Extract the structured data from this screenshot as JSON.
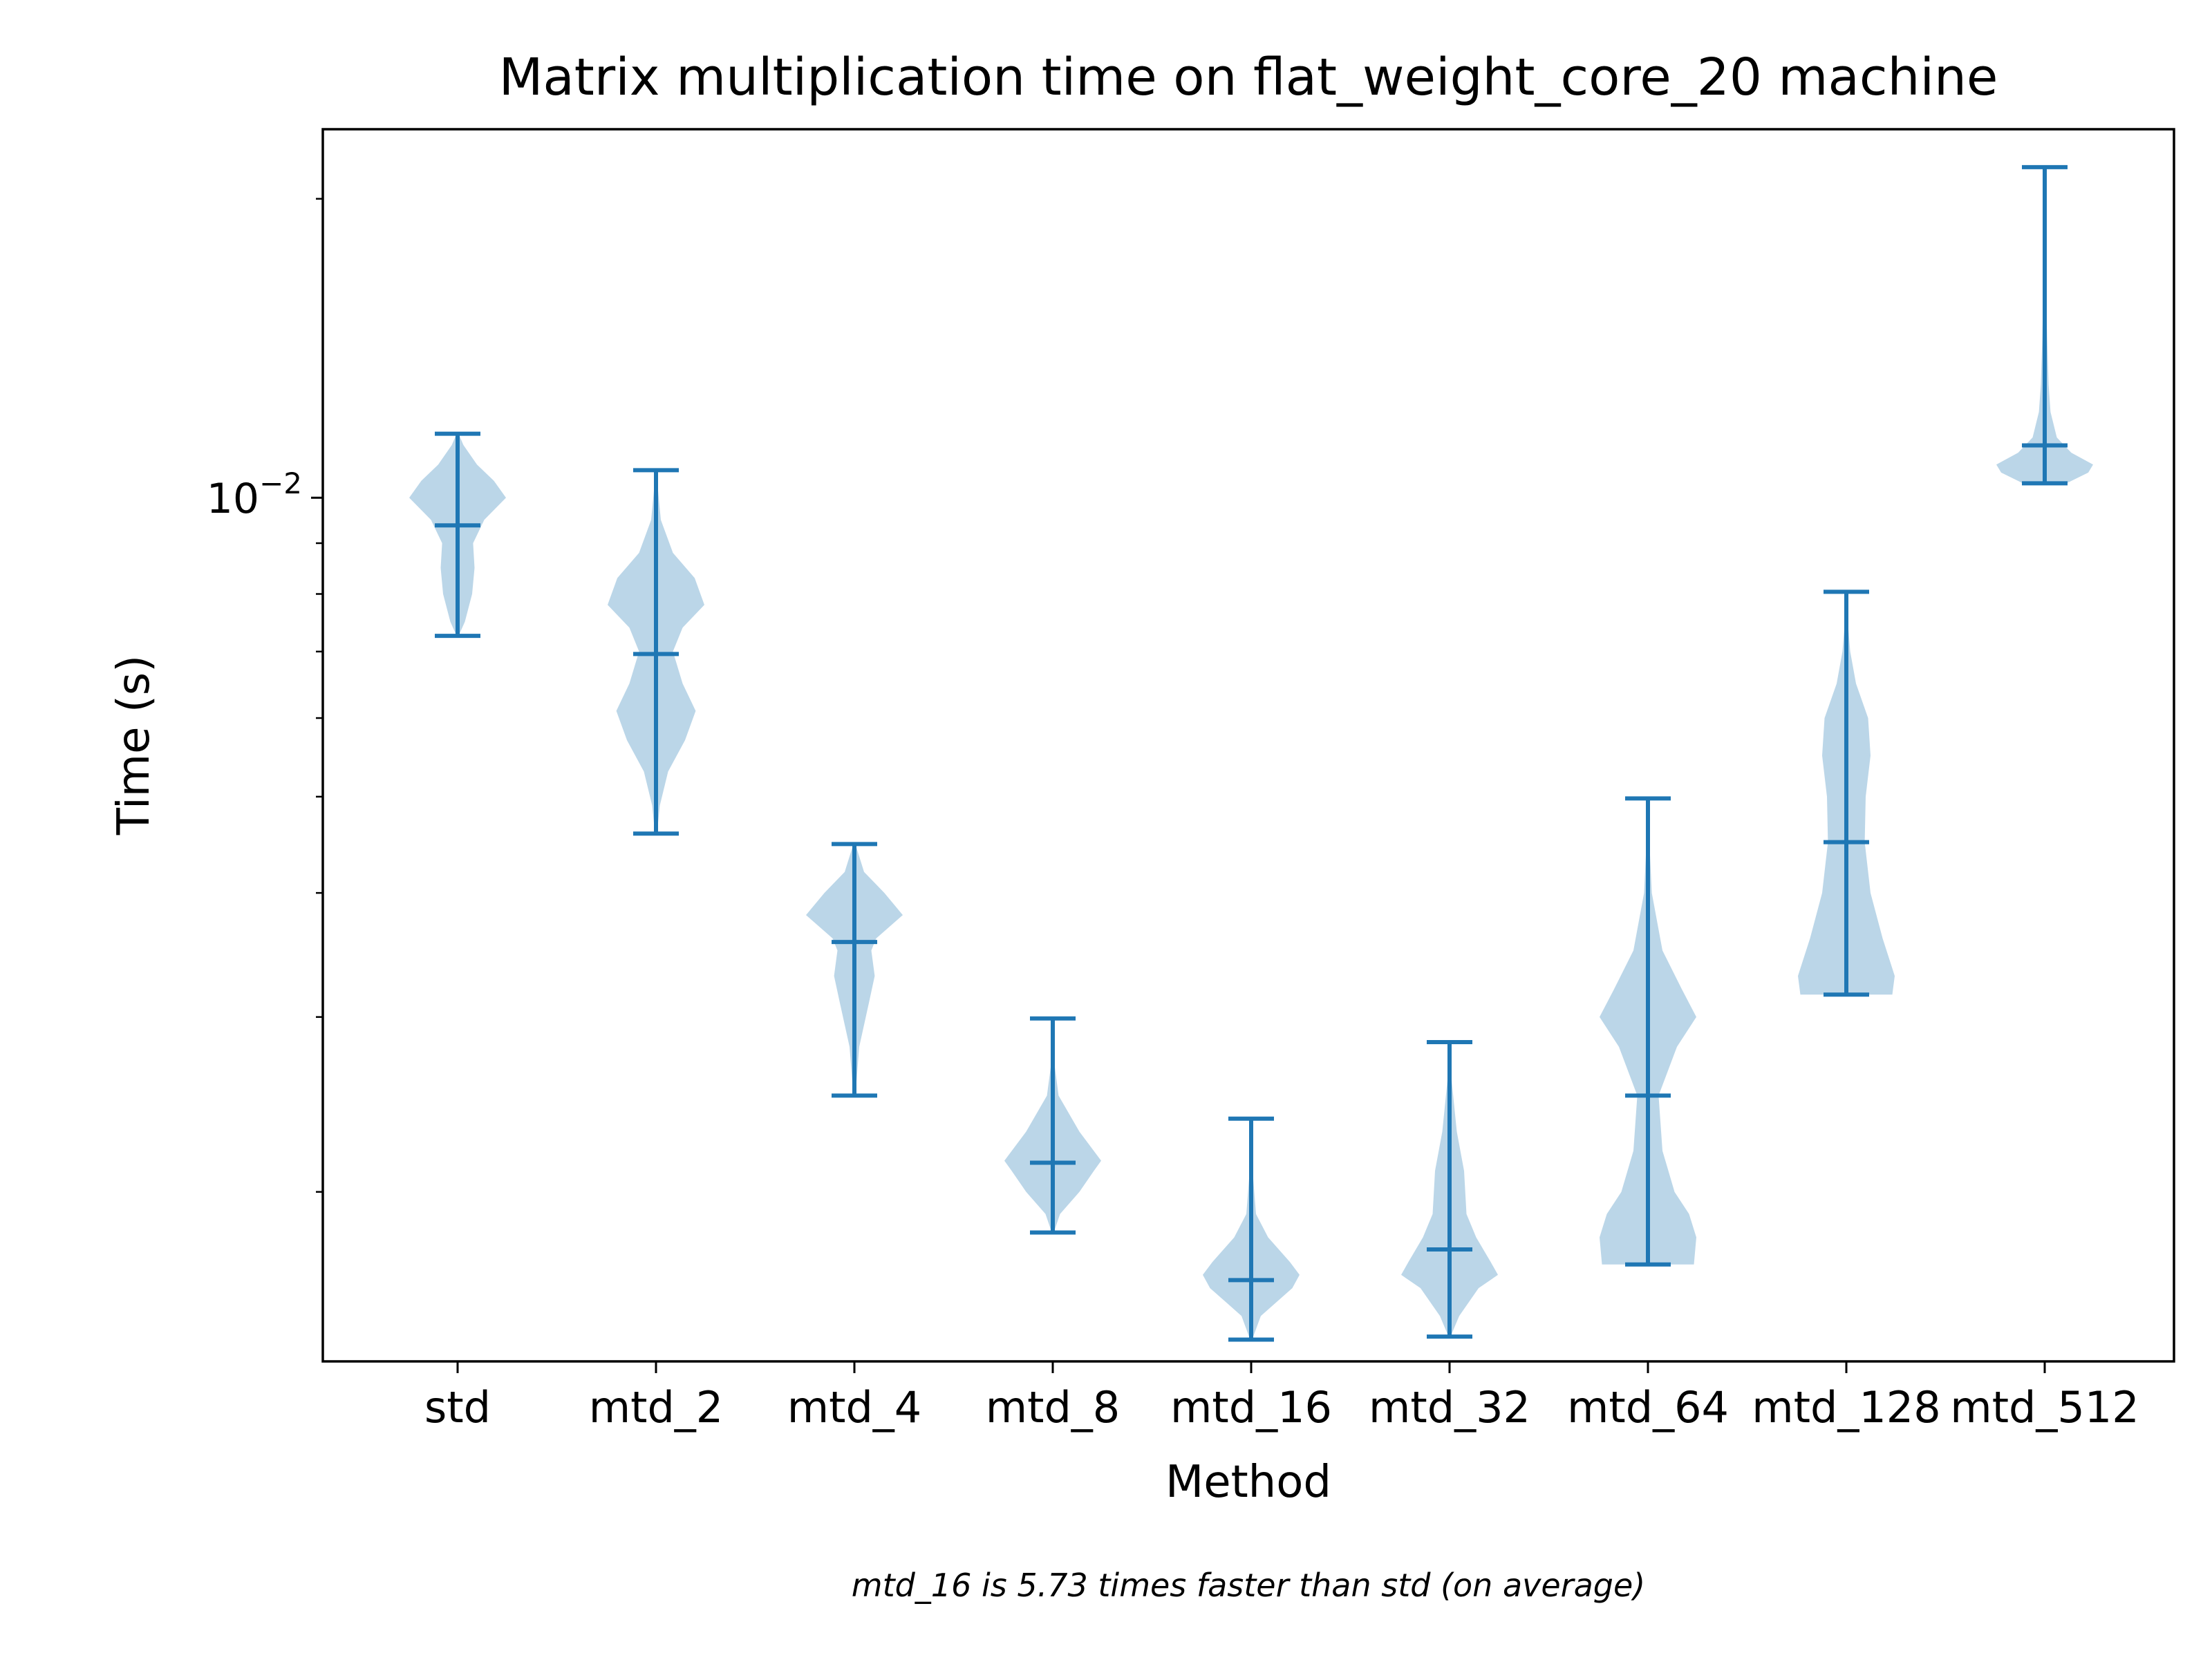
{
  "chart_data": {
    "type": "violin",
    "title": "Matrix multiplication time on flat_weight_core_20 machine",
    "xlabel": "Method",
    "ylabel": "Time (s)",
    "yscale": "log",
    "ylim": [
      0.00135,
      0.0235
    ],
    "yticks_major": [
      {
        "value": 0.01,
        "label": "10",
        "exp": "−2"
      }
    ],
    "yticks_minor": [
      0.002,
      0.003,
      0.004,
      0.005,
      0.006,
      0.007,
      0.008,
      0.009,
      0.02
    ],
    "categories": [
      "std",
      "mtd_2",
      "mtd_4",
      "mtd_8",
      "mtd_16",
      "mtd_32",
      "mtd_64",
      "mtd_128",
      "mtd_512"
    ],
    "series": [
      {
        "min": 0.00726,
        "mean": 0.00938,
        "max": 0.0116,
        "density": [
          [
            0.00726,
            0.02
          ],
          [
            0.0075,
            0.15
          ],
          [
            0.008,
            0.3
          ],
          [
            0.0085,
            0.35
          ],
          [
            0.009,
            0.32
          ],
          [
            0.0095,
            0.55
          ],
          [
            0.01,
            1.0
          ],
          [
            0.0104,
            0.75
          ],
          [
            0.0108,
            0.4
          ],
          [
            0.0113,
            0.12
          ],
          [
            0.0116,
            0.02
          ]
        ]
      },
      {
        "min": 0.00459,
        "mean": 0.00696,
        "max": 0.01066,
        "density": [
          [
            0.00459,
            0.02
          ],
          [
            0.0049,
            0.08
          ],
          [
            0.0053,
            0.25
          ],
          [
            0.0057,
            0.6
          ],
          [
            0.0061,
            0.82
          ],
          [
            0.0065,
            0.55
          ],
          [
            0.007,
            0.35
          ],
          [
            0.0074,
            0.55
          ],
          [
            0.0078,
            1.0
          ],
          [
            0.0083,
            0.8
          ],
          [
            0.0088,
            0.35
          ],
          [
            0.0095,
            0.1
          ],
          [
            0.0102,
            0.04
          ],
          [
            0.01066,
            0.02
          ]
        ]
      },
      {
        "min": 0.0025,
        "mean": 0.00357,
        "max": 0.00448,
        "density": [
          [
            0.0025,
            0.02
          ],
          [
            0.0028,
            0.1
          ],
          [
            0.0031,
            0.3
          ],
          [
            0.0033,
            0.42
          ],
          [
            0.0035,
            0.35
          ],
          [
            0.0036,
            0.45
          ],
          [
            0.0038,
            1.0
          ],
          [
            0.004,
            0.62
          ],
          [
            0.0042,
            0.2
          ],
          [
            0.00448,
            0.02
          ]
        ]
      },
      {
        "min": 0.00182,
        "mean": 0.00214,
        "max": 0.00299,
        "density": [
          [
            0.00182,
            0.02
          ],
          [
            0.0019,
            0.15
          ],
          [
            0.002,
            0.55
          ],
          [
            0.0021,
            0.85
          ],
          [
            0.00215,
            1.0
          ],
          [
            0.0023,
            0.55
          ],
          [
            0.0025,
            0.12
          ],
          [
            0.0027,
            0.03
          ],
          [
            0.00299,
            0.01
          ]
        ]
      },
      {
        "min": 0.00142,
        "mean": 0.00163,
        "max": 0.00237,
        "density": [
          [
            0.00142,
            0.02
          ],
          [
            0.0015,
            0.2
          ],
          [
            0.0016,
            0.85
          ],
          [
            0.00165,
            1.0
          ],
          [
            0.0017,
            0.8
          ],
          [
            0.0018,
            0.35
          ],
          [
            0.0019,
            0.1
          ],
          [
            0.0021,
            0.03
          ],
          [
            0.00237,
            0.01
          ]
        ]
      },
      {
        "min": 0.00143,
        "mean": 0.00175,
        "max": 0.00283,
        "density": [
          [
            0.00143,
            0.02
          ],
          [
            0.0015,
            0.2
          ],
          [
            0.0016,
            0.6
          ],
          [
            0.00165,
            1.0
          ],
          [
            0.0017,
            0.85
          ],
          [
            0.0018,
            0.55
          ],
          [
            0.0019,
            0.35
          ],
          [
            0.0021,
            0.3
          ],
          [
            0.0023,
            0.15
          ],
          [
            0.0026,
            0.04
          ],
          [
            0.00283,
            0.01
          ]
        ]
      },
      {
        "min": 0.00169,
        "mean": 0.0025,
        "max": 0.00498,
        "density": [
          [
            0.00169,
            0.95
          ],
          [
            0.0018,
            1.0
          ],
          [
            0.0019,
            0.85
          ],
          [
            0.002,
            0.55
          ],
          [
            0.0022,
            0.3
          ],
          [
            0.0025,
            0.22
          ],
          [
            0.0028,
            0.6
          ],
          [
            0.003,
            1.0
          ],
          [
            0.0032,
            0.7
          ],
          [
            0.0035,
            0.3
          ],
          [
            0.004,
            0.08
          ],
          [
            0.0045,
            0.03
          ],
          [
            0.00498,
            0.01
          ]
        ]
      },
      {
        "min": 0.00316,
        "mean": 0.0045,
        "max": 0.00804,
        "density": [
          [
            0.00316,
            0.95
          ],
          [
            0.0033,
            1.0
          ],
          [
            0.0036,
            0.75
          ],
          [
            0.004,
            0.5
          ],
          [
            0.0045,
            0.38
          ],
          [
            0.005,
            0.4
          ],
          [
            0.0055,
            0.5
          ],
          [
            0.006,
            0.45
          ],
          [
            0.0065,
            0.2
          ],
          [
            0.007,
            0.08
          ],
          [
            0.0075,
            0.03
          ],
          [
            0.00804,
            0.01
          ]
        ]
      },
      {
        "min": 0.01034,
        "mean": 0.01129,
        "max": 0.02152,
        "density": [
          [
            0.01034,
            0.45
          ],
          [
            0.0106,
            0.9
          ],
          [
            0.0108,
            1.0
          ],
          [
            0.0111,
            0.55
          ],
          [
            0.0115,
            0.25
          ],
          [
            0.0122,
            0.12
          ],
          [
            0.013,
            0.08
          ],
          [
            0.0145,
            0.05
          ],
          [
            0.017,
            0.02
          ],
          [
            0.02,
            0.01
          ],
          [
            0.02152,
            0.005
          ]
        ]
      }
    ],
    "colors": {
      "line": "#1f77b4",
      "fill": "#1f77b4",
      "fill_opacity": 0.3
    },
    "grid": false,
    "legend": "none"
  },
  "footnote": "mtd_16 is 5.73 times faster than std (on average)"
}
